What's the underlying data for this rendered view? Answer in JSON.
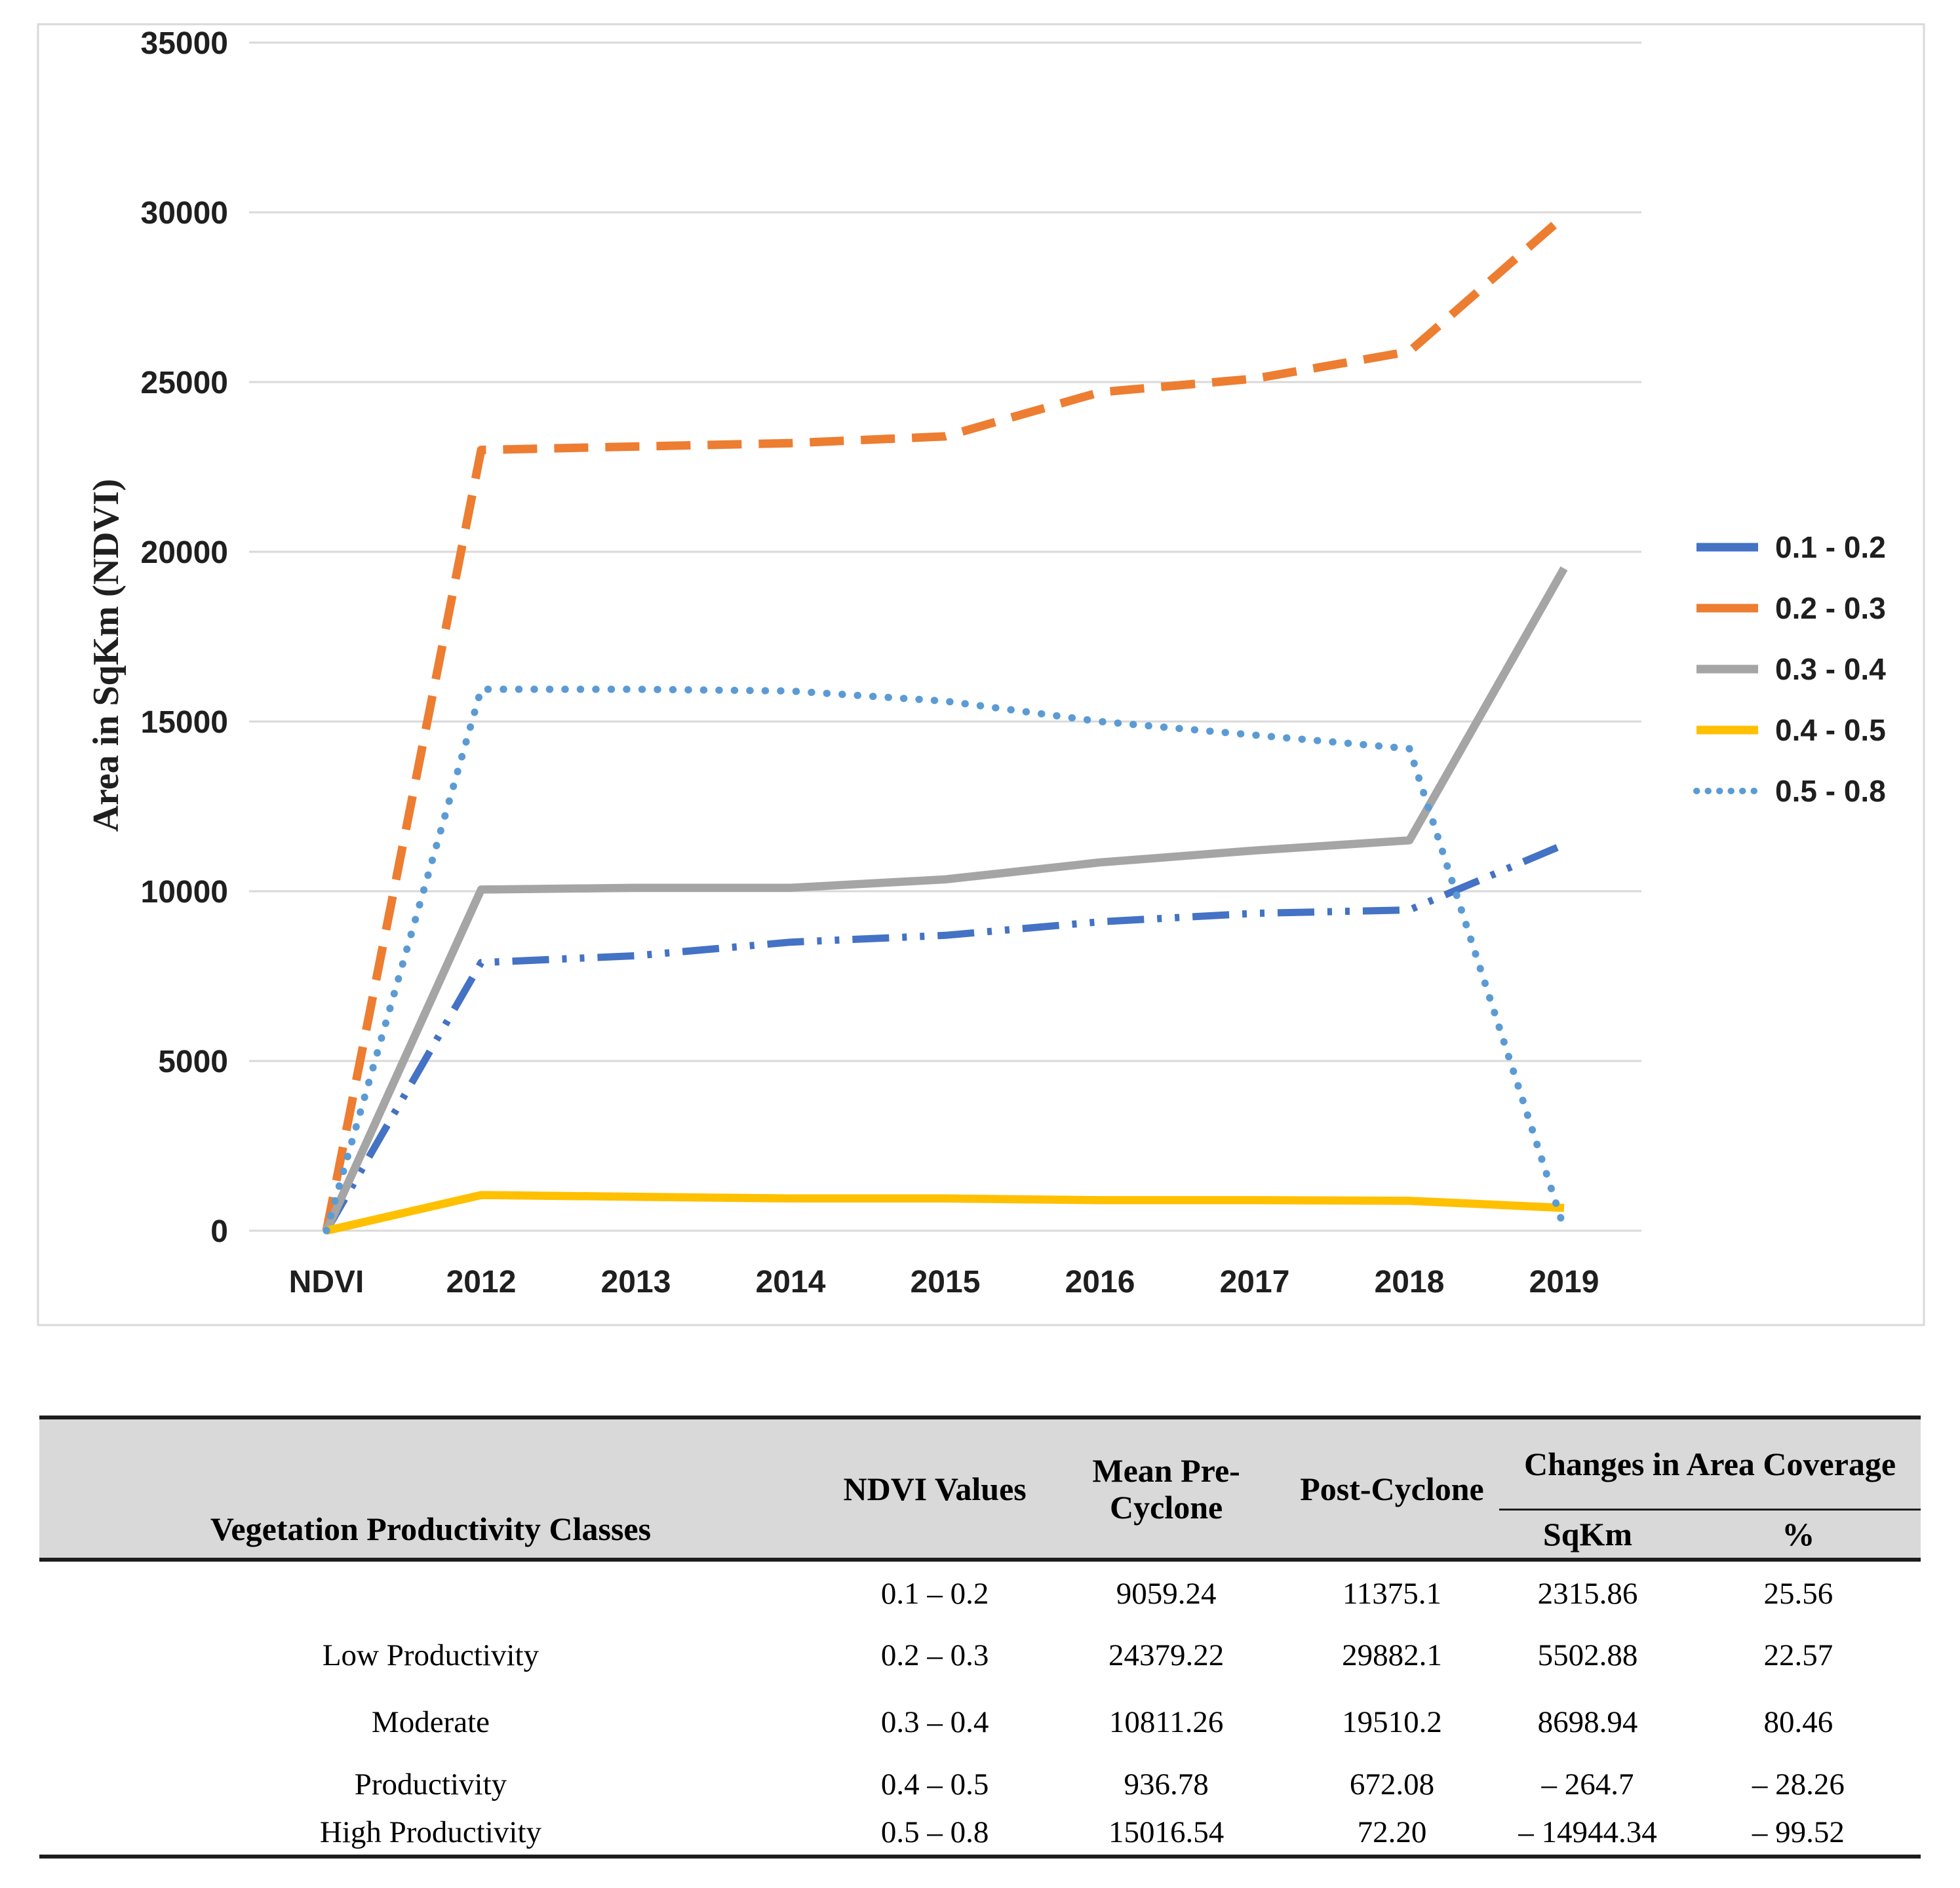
{
  "chart": {
    "y_axis_title": "Area in SqKm (NDVI)",
    "y_ticks": [
      "35000",
      "30000",
      "25000",
      "20000",
      "15000",
      "10000",
      "5000",
      "0"
    ],
    "x_labels": [
      "NDVI",
      "2012",
      "2013",
      "2014",
      "2015",
      "2016",
      "2017",
      "2018",
      "2019"
    ],
    "gridline_color": "#d9d9d9",
    "text_color": "#1f1f1f"
  },
  "chart_data": {
    "type": "line",
    "title": "",
    "xlabel": "",
    "ylabel": "Area in SqKm (NDVI)",
    "categories": [
      "NDVI",
      "2012",
      "2013",
      "2014",
      "2015",
      "2016",
      "2017",
      "2018",
      "2019"
    ],
    "ylim": [
      0,
      35000
    ],
    "grid": true,
    "legend_position": "right",
    "series": [
      {
        "name": "0.1 - 0.2",
        "color": "#4472C4",
        "style": "dashdotdot",
        "values": [
          0,
          7900,
          8100,
          8500,
          8700,
          9100,
          9350,
          9450,
          11375.1
        ]
      },
      {
        "name": "0.2 - 0.3",
        "color": "#ED7D31",
        "style": "dash",
        "values": [
          0,
          23000,
          23100,
          23200,
          23400,
          24700,
          25100,
          25900,
          29882.1
        ]
      },
      {
        "name": "0.3 - 0.4",
        "color": "#A5A5A5",
        "style": "solid",
        "values": [
          0,
          10050,
          10100,
          10100,
          10350,
          10850,
          11200,
          11500,
          19510.2
        ]
      },
      {
        "name": "0.4 - 0.5",
        "color": "#FFC000",
        "style": "solid",
        "values": [
          0,
          1050,
          1000,
          950,
          950,
          900,
          900,
          880,
          672.08
        ]
      },
      {
        "name": "0.5 - 0.8",
        "color": "#5B9BD5",
        "style": "dot",
        "values": [
          0,
          15950,
          15950,
          15900,
          15600,
          15000,
          14600,
          14200,
          72.2
        ]
      }
    ]
  },
  "table": {
    "headers": {
      "veg_classes": "Vegetation Productivity Classes",
      "ndvi_values": "NDVI Values",
      "pre_cyclone": "Mean Pre-Cyclone",
      "post_cyclone": "Post-Cyclone",
      "changes": "Changes in Area Coverage",
      "sqkm": "SqKm",
      "percent": "%"
    },
    "rows": [
      [
        "",
        "0.1 – 0.2",
        "9059.24",
        "11375.1",
        "2315.86",
        "25.56"
      ],
      [
        "Low Productivity",
        "0.2 – 0.3",
        "24379.22",
        "29882.1",
        "5502.88",
        "22.57"
      ],
      [
        "Moderate",
        "0.3 – 0.4",
        "10811.26",
        "19510.2",
        "8698.94",
        "80.46"
      ],
      [
        "Productivity",
        "0.4 – 0.5",
        "936.78",
        "672.08",
        "– 264.7",
        "– 28.26"
      ],
      [
        "High Productivity",
        "0.5 – 0.8",
        "15016.54",
        "72.20",
        "– 14944.34",
        "– 99.52"
      ]
    ]
  }
}
